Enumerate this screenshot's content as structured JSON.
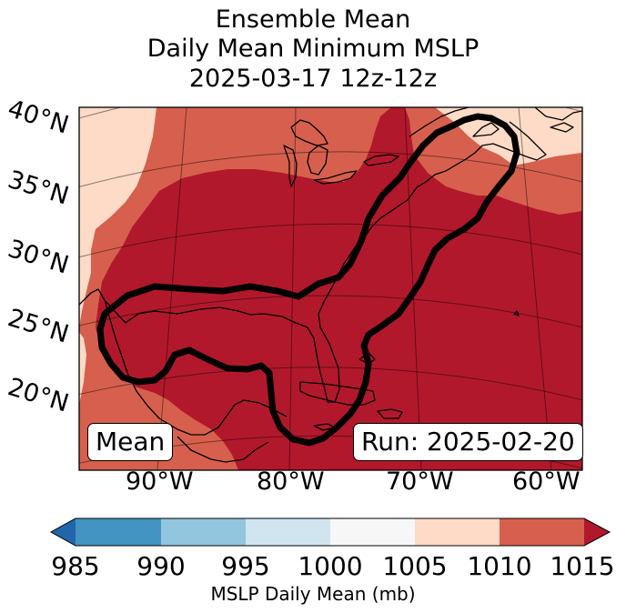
{
  "title": {
    "line1": "Ensemble Mean",
    "line2": "Daily Mean Minimum MSLP",
    "line3": "2025-03-17 12z-12z"
  },
  "map": {
    "lat_labels": [
      "40°N",
      "35°N",
      "30°N",
      "25°N",
      "20°N"
    ],
    "lon_labels": [
      "90°W",
      "80°W",
      "70°W",
      "60°W"
    ],
    "mean_label": "Mean",
    "run_label": "Run: 2025-02-20",
    "fill_colors": {
      "1005-1010": "#fddbc7",
      "1010-1015": "#d6604d",
      ">1015": "#b2182b"
    },
    "contour_color": "#000000"
  },
  "colorbar": {
    "ticks": [
      "985",
      "990",
      "995",
      "1000",
      "1005",
      "1010",
      "1015"
    ],
    "label": "MSLP Daily Mean (mb)",
    "colors": [
      "#2166ac",
      "#4393c3",
      "#92c5de",
      "#d1e5f0",
      "#f7f7f7",
      "#fddbc7",
      "#d6604d",
      "#b2182b"
    ]
  }
}
